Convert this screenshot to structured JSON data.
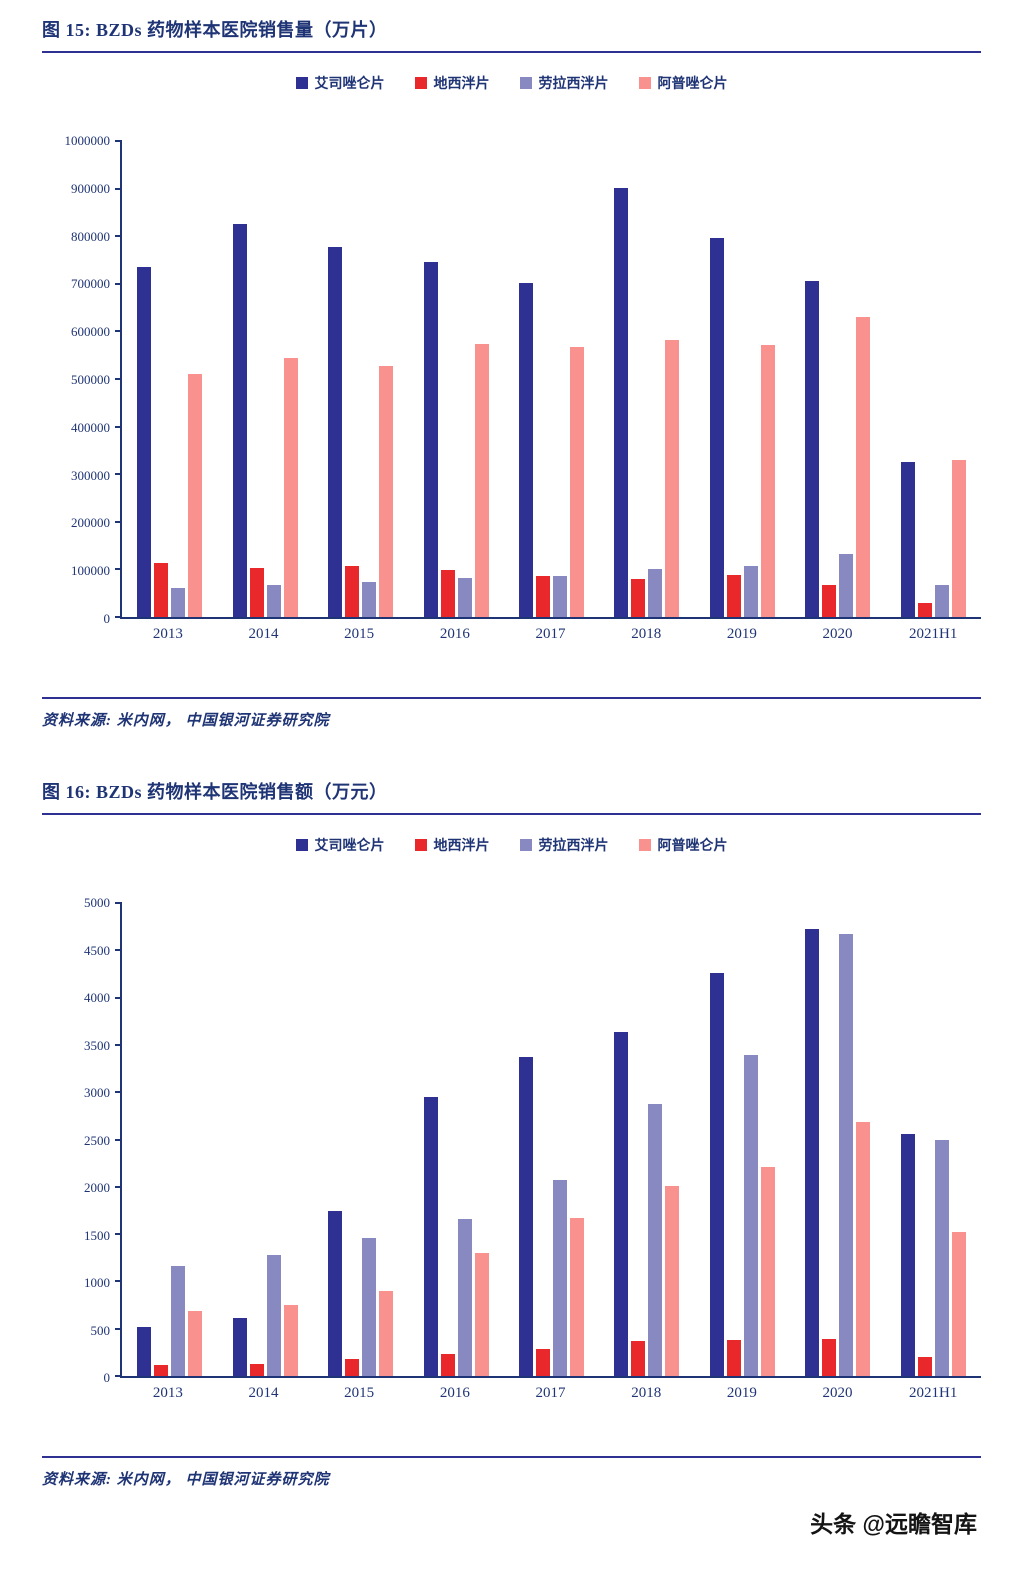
{
  "page": {
    "watermark": "头条 @远瞻智库"
  },
  "colors": {
    "accent_navy": "#2E3192",
    "text_navy": "#1F3475",
    "series": [
      "#2E3192",
      "#E9282B",
      "#8789C0",
      "#F9918E"
    ]
  },
  "chart_data": [
    {
      "type": "bar",
      "title": "图 15:  BZDs 药物样本医院销售量（万片）",
      "source": "资料来源: 米内网， 中国银河证券研究院",
      "categories": [
        "2013",
        "2014",
        "2015",
        "2016",
        "2017",
        "2018",
        "2019",
        "2020",
        "2021H1"
      ],
      "series": [
        {
          "name": "艾司唑仑片",
          "color": "#2E3192",
          "values": [
            735000,
            825000,
            778000,
            746000,
            701000,
            902000,
            797000,
            706000,
            325000
          ]
        },
        {
          "name": "地西泮片",
          "color": "#E9282B",
          "values": [
            113000,
            104000,
            107000,
            99000,
            87000,
            79000,
            88000,
            67000,
            29000
          ]
        },
        {
          "name": "劳拉西泮片",
          "color": "#8789C0",
          "values": [
            62000,
            68000,
            73000,
            81000,
            87000,
            100000,
            108000,
            133000,
            68000
          ]
        },
        {
          "name": "阿普唑仑片",
          "color": "#F9918E",
          "values": [
            510000,
            545000,
            527000,
            574000,
            567000,
            582000,
            571000,
            631000,
            330000
          ]
        }
      ],
      "ylim": [
        0,
        1000000
      ],
      "ytick_step": 100000,
      "xlabel": "",
      "ylabel": "",
      "legend_position": "top",
      "grid": false
    },
    {
      "type": "bar",
      "title": "图 16:  BZDs 药物样本医院销售额（万元）",
      "source": "资料来源: 米内网， 中国银河证券研究院",
      "categories": [
        "2013",
        "2014",
        "2015",
        "2016",
        "2017",
        "2018",
        "2019",
        "2020",
        "2021H1"
      ],
      "series": [
        {
          "name": "艾司唑仑片",
          "color": "#2E3192",
          "values": [
            520,
            610,
            1740,
            2950,
            3370,
            3640,
            4260,
            4730,
            2560
          ]
        },
        {
          "name": "地西泮片",
          "color": "#E9282B",
          "values": [
            120,
            125,
            175,
            235,
            290,
            365,
            385,
            395,
            200
          ]
        },
        {
          "name": "劳拉西泮片",
          "color": "#8789C0",
          "values": [
            1160,
            1280,
            1460,
            1660,
            2070,
            2880,
            3390,
            4670,
            2500
          ]
        },
        {
          "name": "阿普唑仑片",
          "color": "#F9918E",
          "values": [
            690,
            750,
            900,
            1300,
            1670,
            2010,
            2210,
            2690,
            1520
          ]
        }
      ],
      "ylim": [
        0,
        5000
      ],
      "ytick_step": 500,
      "xlabel": "",
      "ylabel": "",
      "legend_position": "top",
      "grid": false
    }
  ]
}
